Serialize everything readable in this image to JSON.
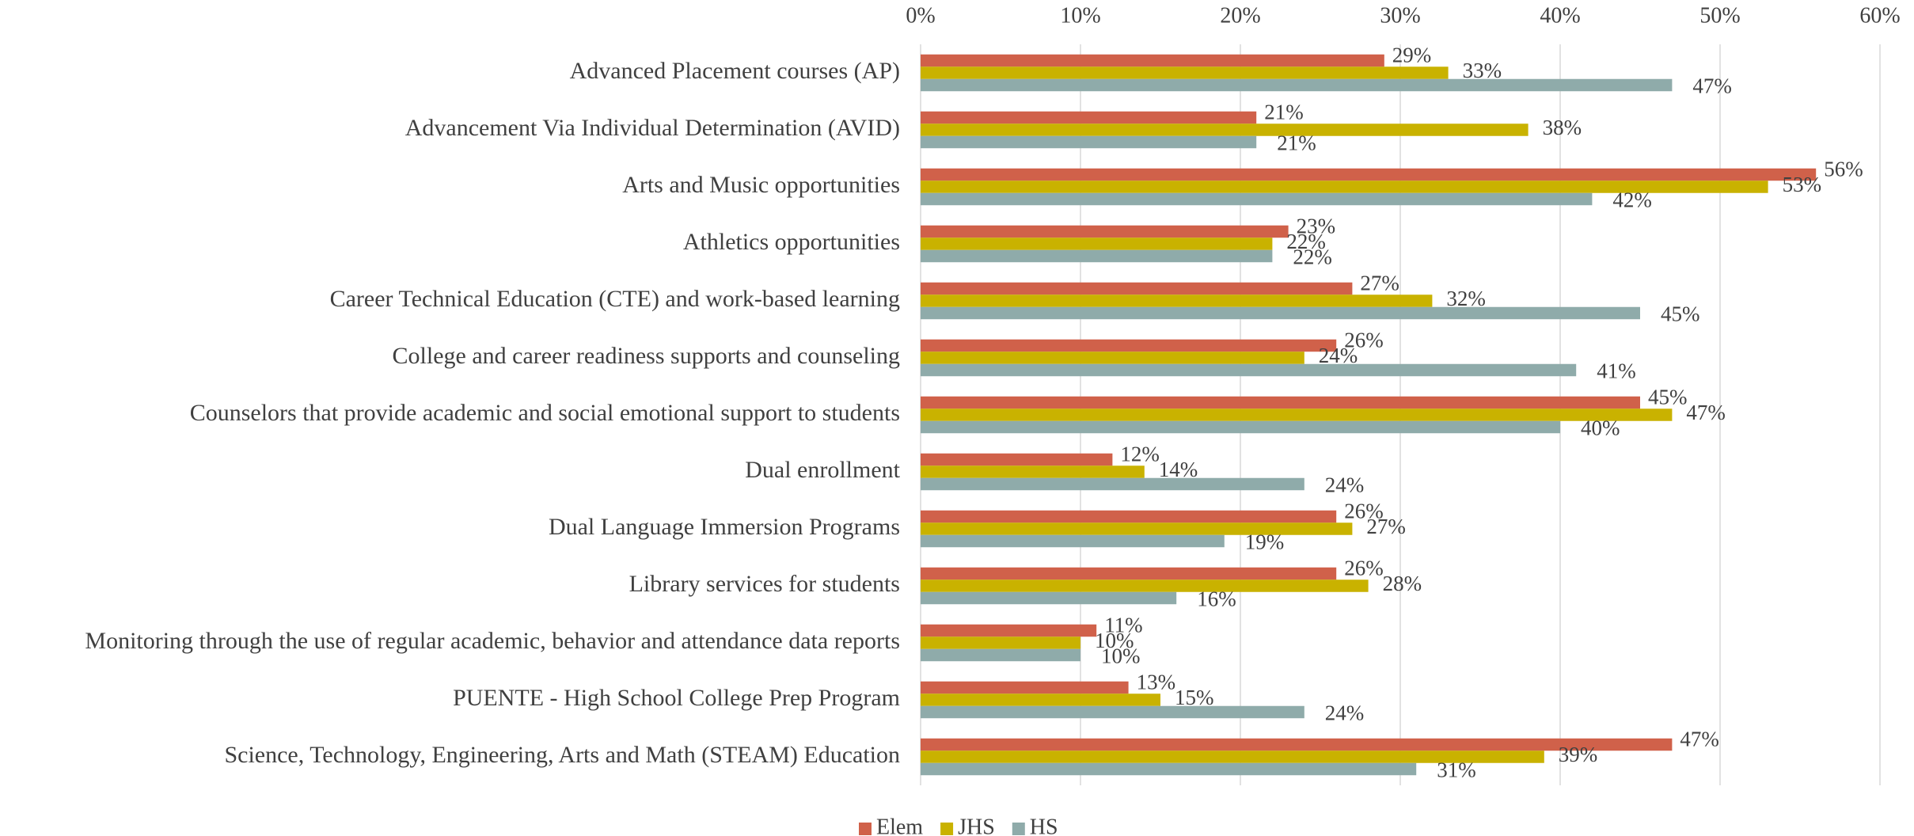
{
  "chart_data": {
    "type": "hbar",
    "categories": [
      "Advanced Placement courses (AP)",
      "Advancement Via Individual Determination (AVID)",
      "Arts and Music opportunities",
      "Athletics opportunities",
      "Career Technical Education (CTE) and work-based learning",
      "College and career readiness supports and counseling",
      "Counselors that provide academic and social emotional support to students",
      "Dual enrollment",
      "Dual Language Immersion Programs",
      "Library services for students",
      "Monitoring through the use of regular academic, behavior and attendance data reports",
      "PUENTE - High School College Prep Program",
      "Science, Technology, Engineering, Arts and Math (STEAM) Education"
    ],
    "series": [
      {
        "name": "Elem",
        "color": "#d0614a",
        "values": [
          29,
          21,
          56,
          23,
          27,
          26,
          45,
          12,
          26,
          26,
          11,
          13,
          47
        ],
        "value_labels": [
          "29%",
          "21%",
          "56%",
          "23%",
          "27%",
          "26%",
          "45%",
          "12%",
          "26%",
          "26%",
          "11%",
          "13%",
          "47%"
        ]
      },
      {
        "name": "JHS",
        "color": "#c9b200",
        "values": [
          33,
          38,
          53,
          22,
          32,
          24,
          47,
          14,
          27,
          28,
          10,
          15,
          39
        ],
        "value_labels": [
          "33%",
          "38%",
          "53%",
          "22%",
          "32%",
          "24%",
          "47%",
          "14%",
          "27%",
          "28%",
          "10%",
          "15%",
          "39%"
        ]
      },
      {
        "name": "HS",
        "color": "#8fabaa",
        "values": [
          47,
          21,
          42,
          22,
          45,
          41,
          40,
          24,
          19,
          16,
          10,
          24,
          31
        ],
        "value_labels": [
          "47%",
          "21%",
          "42%",
          "22%",
          "45%",
          "41%",
          "40%",
          "24%",
          "19%",
          "16%",
          "10%",
          "24%",
          "31%"
        ]
      }
    ],
    "xlim": [
      0,
      60
    ],
    "xticks": [
      {
        "value": 0,
        "label": "0%"
      },
      {
        "value": 10,
        "label": "10%"
      },
      {
        "value": 20,
        "label": "20%"
      },
      {
        "value": 30,
        "label": "30%"
      },
      {
        "value": 40,
        "label": "40%"
      },
      {
        "value": 50,
        "label": "50%"
      },
      {
        "value": 60,
        "label": "60%"
      }
    ],
    "grid": true,
    "legend": "bottom"
  }
}
